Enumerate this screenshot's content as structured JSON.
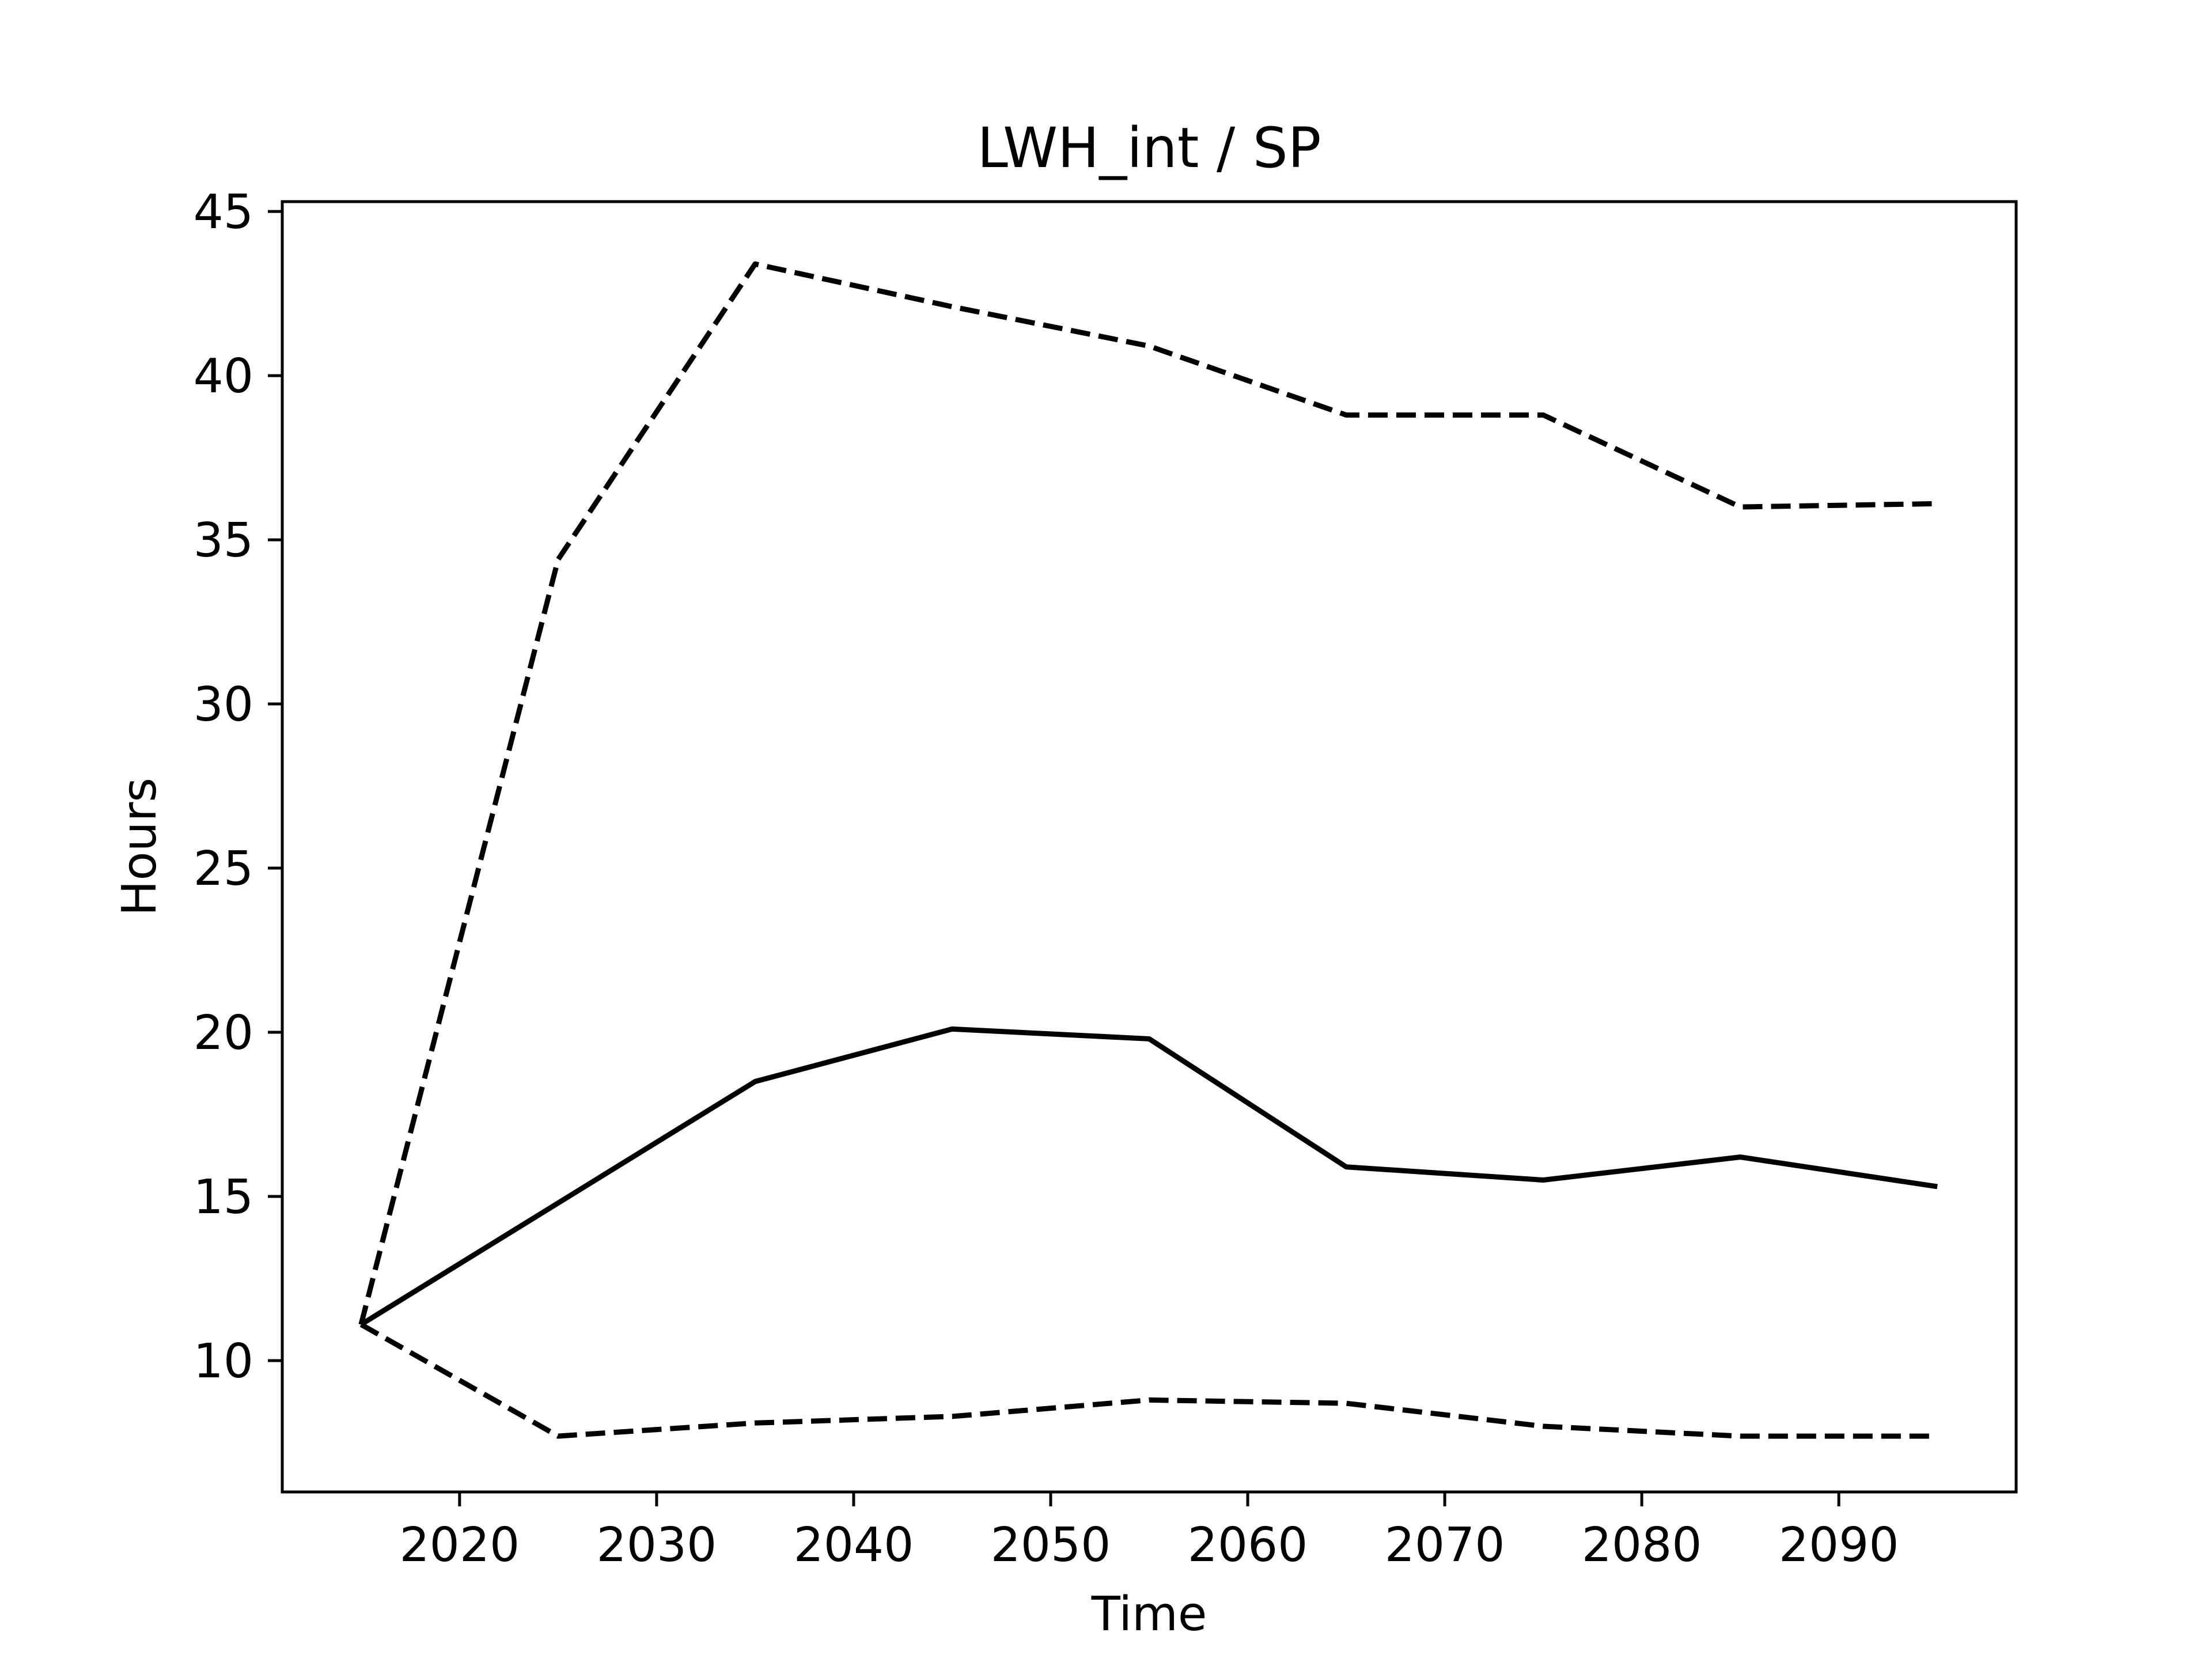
{
  "chart_data": {
    "type": "line",
    "title": "LWH_int / SP",
    "xlabel": "Time",
    "ylabel": "Hours",
    "xlim": [
      2011,
      2099
    ],
    "ylim": [
      6,
      45.3
    ],
    "x_ticks": [
      2020,
      2030,
      2040,
      2050,
      2060,
      2070,
      2080,
      2090
    ],
    "y_ticks": [
      10,
      15,
      20,
      25,
      30,
      35,
      40,
      45
    ],
    "grid": false,
    "legend": false,
    "x": [
      2015,
      2025,
      2035,
      2045,
      2055,
      2065,
      2075,
      2085,
      2095
    ],
    "series": [
      {
        "style": "dashed",
        "color": "#000000",
        "values": [
          11.1,
          34.4,
          43.4,
          42.1,
          40.9,
          38.8,
          38.8,
          36.0,
          36.1
        ]
      },
      {
        "style": "solid",
        "color": "#000000",
        "values": [
          11.1,
          14.8,
          18.5,
          20.1,
          19.8,
          15.9,
          15.5,
          16.2,
          15.3
        ]
      },
      {
        "style": "dashed",
        "color": "#000000",
        "values": [
          11.1,
          7.7,
          8.1,
          8.3,
          8.8,
          8.7,
          8.0,
          7.7,
          7.7
        ]
      }
    ]
  }
}
